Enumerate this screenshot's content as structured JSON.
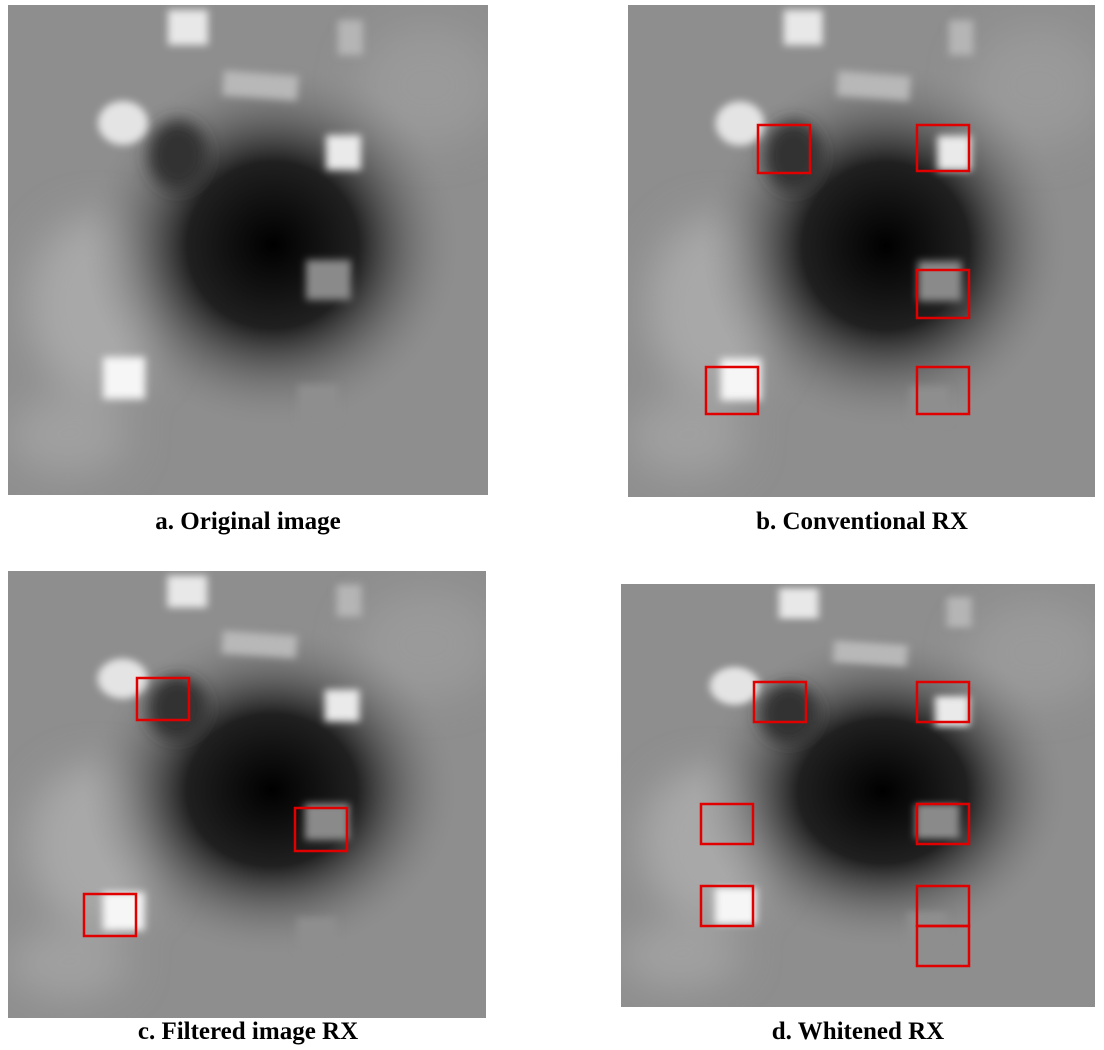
{
  "panels": [
    {
      "caption": "a. Original image"
    },
    {
      "caption": "b. Conventional RX"
    },
    {
      "caption": "c. Filtered image RX"
    },
    {
      "caption": "d. Whitened RX"
    }
  ]
}
